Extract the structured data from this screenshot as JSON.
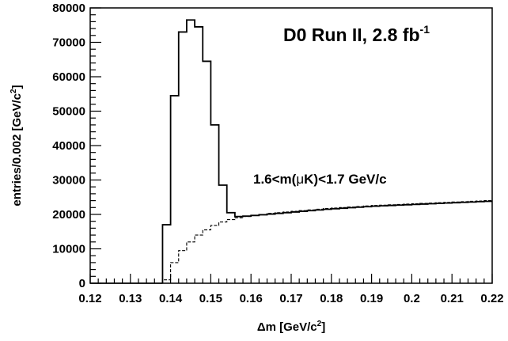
{
  "chart_data": {
    "type": "line",
    "xlabel": {
      "prefix": "Δm [GeV/c",
      "sup": "2",
      "suffix": "]"
    },
    "ylabel": {
      "prefix": "entries/0.002 [GeV/c",
      "sup": "2",
      "suffix": "]"
    },
    "annotations": {
      "title": {
        "prefix": "D0 Run II, 2.8 fb",
        "sup": "-1"
      },
      "cut": {
        "prefix": "1.6<m(",
        "greek": "μ",
        "suffix": "K)<1.7 GeV/c"
      }
    },
    "xlim": [
      0.12,
      0.22
    ],
    "ylim": [
      0,
      80000
    ],
    "xticks": [
      0.12,
      0.13,
      0.14,
      0.15,
      0.16,
      0.17,
      0.18,
      0.19,
      0.2,
      0.21,
      0.22
    ],
    "xtick_labels": [
      "0.12",
      "0.13",
      "0.14",
      "0.15",
      "0.16",
      "0.17",
      "0.18",
      "0.19",
      "0.2",
      "0.21",
      "0.22"
    ],
    "yticks": [
      0,
      10000,
      20000,
      30000,
      40000,
      50000,
      60000,
      70000,
      80000
    ],
    "ytick_labels": [
      "0",
      "10000",
      "20000",
      "30000",
      "40000",
      "50000",
      "60000",
      "70000",
      "80000"
    ],
    "grid": false,
    "bin_width": 0.002,
    "series": [
      {
        "style": "solid-step",
        "color": "#000000",
        "x": [
          0.139,
          0.141,
          0.143,
          0.145,
          0.147,
          0.149,
          0.151,
          0.153,
          0.155,
          0.157,
          0.159,
          0.161,
          0.163,
          0.165,
          0.167,
          0.169,
          0.171,
          0.173,
          0.175,
          0.177,
          0.179,
          0.181,
          0.183,
          0.185,
          0.187,
          0.189,
          0.191,
          0.193,
          0.195,
          0.197,
          0.199,
          0.201,
          0.203,
          0.205,
          0.207,
          0.209,
          0.211,
          0.213,
          0.215,
          0.217,
          0.219
        ],
        "values": [
          17000,
          54500,
          73000,
          76500,
          74500,
          64500,
          46000,
          28500,
          20500,
          19400,
          19500,
          19700,
          19900,
          20100,
          20300,
          20500,
          20700,
          20900,
          21100,
          21300,
          21500,
          21650,
          21800,
          21950,
          22100,
          22250,
          22400,
          22500,
          22600,
          22700,
          22800,
          22900,
          23000,
          23100,
          23200,
          23300,
          23400,
          23500,
          23600,
          23700,
          23800
        ]
      },
      {
        "style": "dashed-step",
        "color": "#000000",
        "x": [
          0.139,
          0.141,
          0.143,
          0.145,
          0.147,
          0.149,
          0.151,
          0.153,
          0.155,
          0.157,
          0.159,
          0.161,
          0.163,
          0.165,
          0.167,
          0.169,
          0.171,
          0.173,
          0.175,
          0.177,
          0.179,
          0.181,
          0.183,
          0.185,
          0.187,
          0.189,
          0.191,
          0.193,
          0.195,
          0.197,
          0.199,
          0.201,
          0.203,
          0.205,
          0.207,
          0.209,
          0.211,
          0.213,
          0.215,
          0.217,
          0.219
        ],
        "values": [
          1000,
          6000,
          9500,
          12000,
          14000,
          15500,
          16800,
          17800,
          18500,
          19000,
          19400,
          19700,
          20000,
          20300,
          20500,
          20700,
          20900,
          21100,
          21300,
          21500,
          21700,
          21850,
          22000,
          22150,
          22300,
          22450,
          22600,
          22700,
          22800,
          22900,
          23000,
          23100,
          23200,
          23300,
          23400,
          23500,
          23600,
          23700,
          23800,
          23900,
          24000
        ]
      }
    ]
  }
}
